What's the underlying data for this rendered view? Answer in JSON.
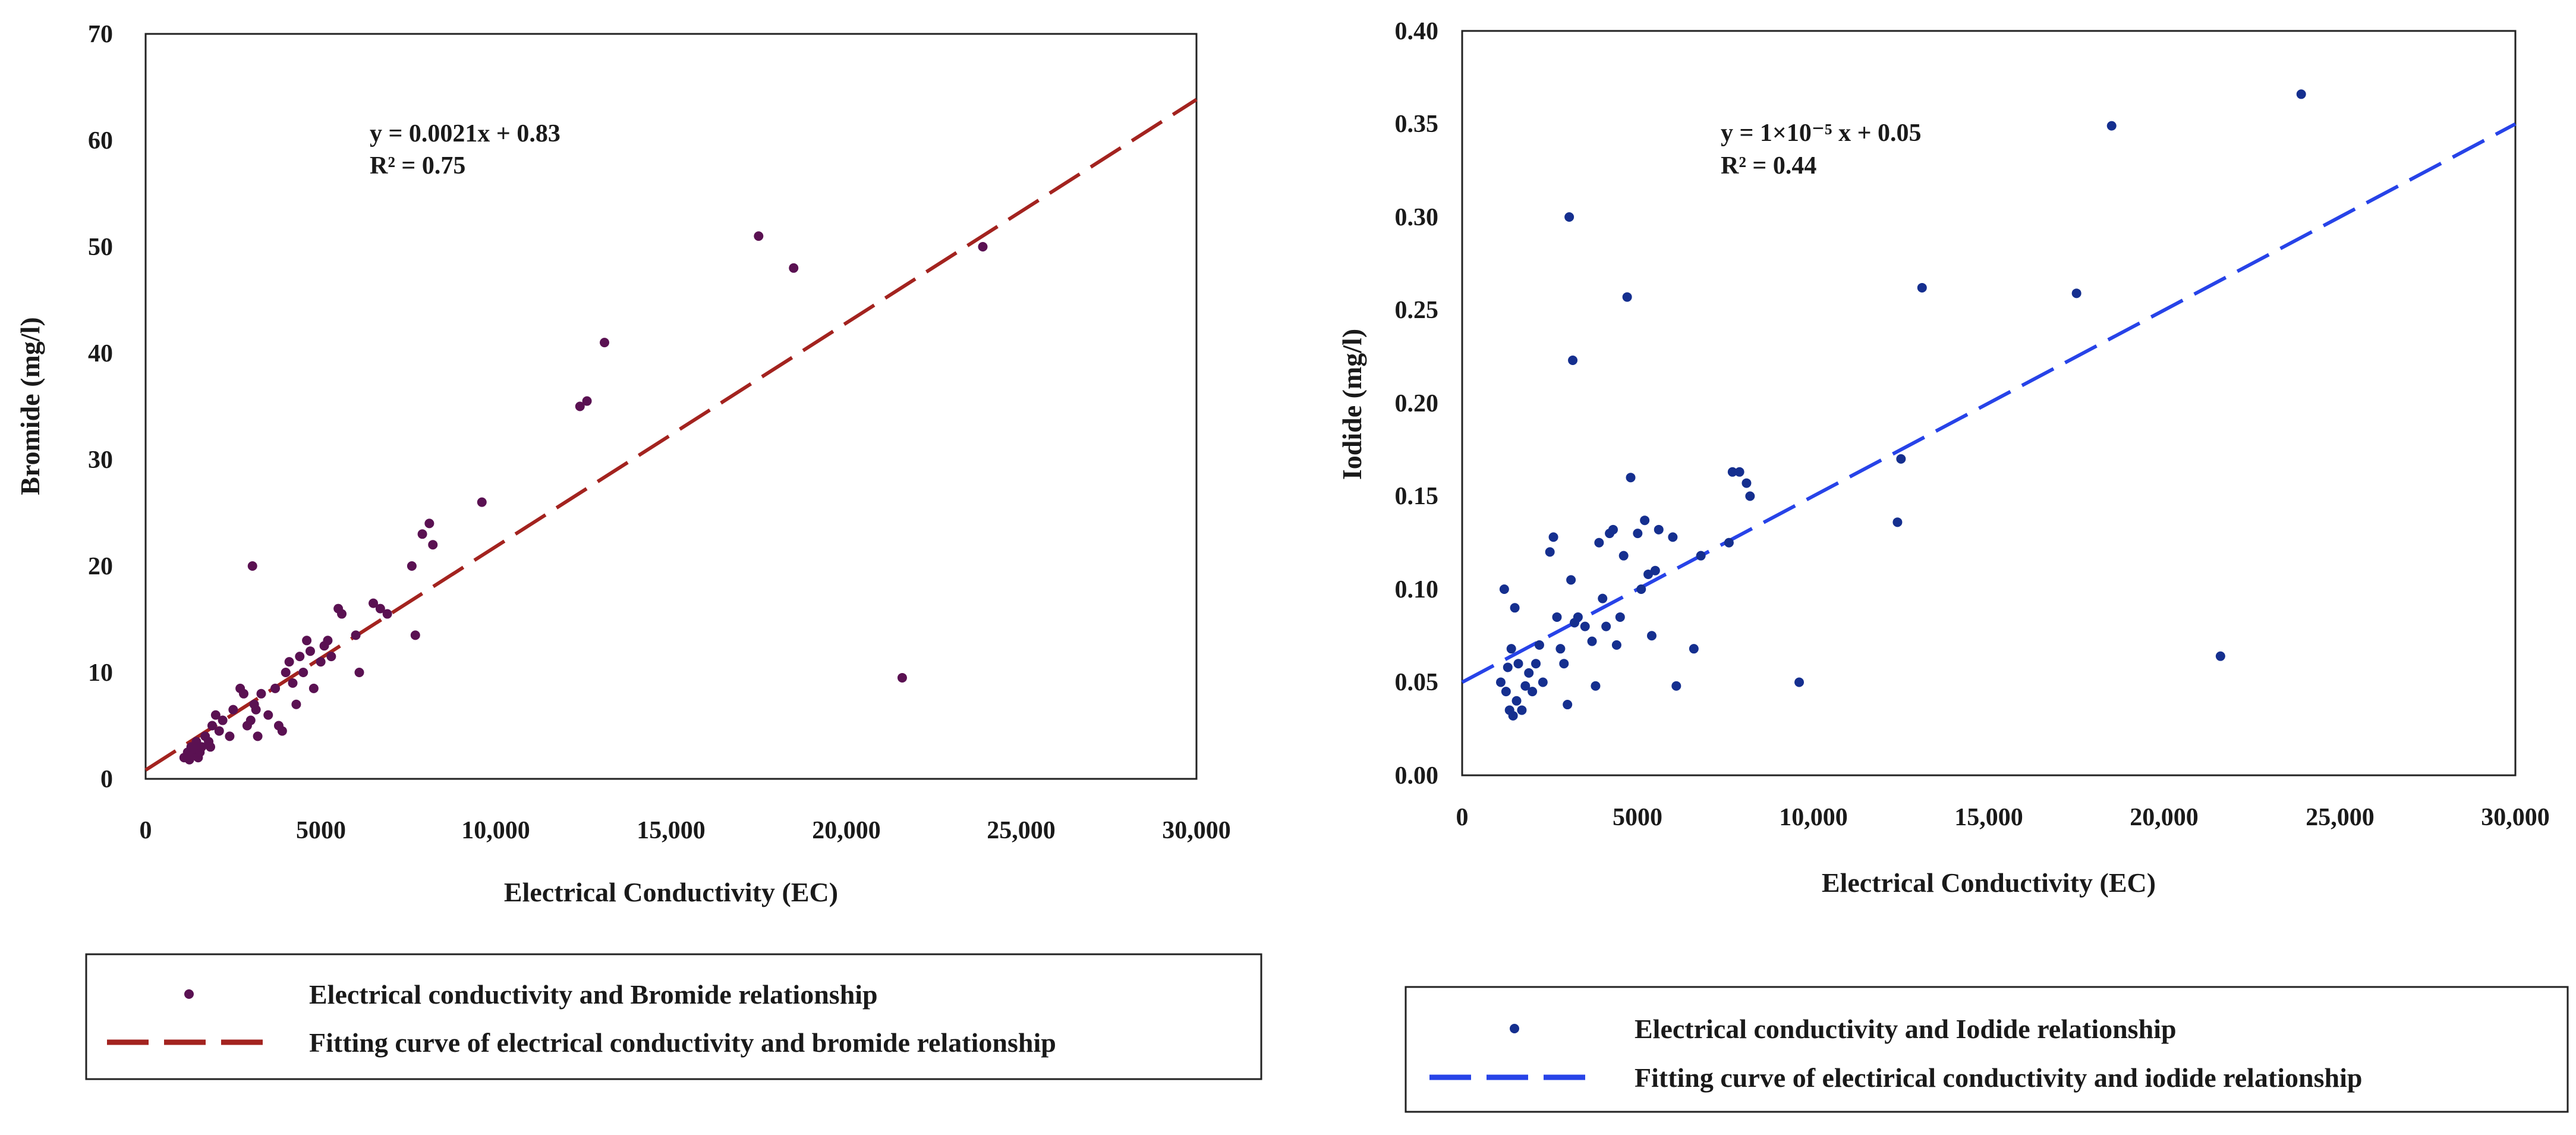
{
  "chart_data": [
    {
      "type": "scatter",
      "title": "",
      "xlabel": "Electrical Conductivity (EC)",
      "ylabel": "Bromide (mg/l)",
      "xlim": [
        0,
        30000
      ],
      "ylim": [
        0,
        70
      ],
      "xticks": [
        0,
        5000,
        10000,
        15000,
        20000,
        25000,
        30000
      ],
      "xtick_labels": [
        "0",
        "5000",
        "10,000",
        "15,000",
        "20,000",
        "25,000",
        "30,000"
      ],
      "yticks": [
        0,
        10,
        20,
        30,
        40,
        50,
        60,
        70
      ],
      "ytick_labels": [
        "0",
        "10",
        "20",
        "30",
        "40",
        "50",
        "60",
        "70"
      ],
      "equation": "y = 0.0021x + 0.83",
      "r2": "R² = 0.75",
      "fit": {
        "slope": 0.0021,
        "intercept": 0.83
      },
      "point_color": "#5a1152",
      "line_color": "#a3231f",
      "legend": {
        "points": "Electrical conductivity and Bromide relationship",
        "line": "Fitting curve of electrical conductivity and bromide relationship"
      },
      "x": [
        1100,
        1200,
        1250,
        1300,
        1350,
        1400,
        1450,
        1500,
        1550,
        1600,
        1700,
        1800,
        1850,
        1900,
        2000,
        2100,
        2200,
        2400,
        2500,
        2700,
        2800,
        2900,
        3000,
        3050,
        3100,
        3150,
        3200,
        3300,
        3500,
        3700,
        3800,
        3900,
        4000,
        4100,
        4200,
        4300,
        4400,
        4500,
        4600,
        4700,
        4800,
        5000,
        5100,
        5200,
        5300,
        5500,
        5600,
        6000,
        6100,
        6500,
        6700,
        6900,
        7600,
        7700,
        7900,
        8100,
        8200,
        9600,
        12400,
        12600,
        13100,
        17500,
        18500,
        21600,
        23900
      ],
      "y": [
        2.0,
        2.5,
        1.8,
        3.0,
        2.2,
        2.8,
        3.5,
        2.0,
        2.5,
        3.0,
        4.0,
        3.5,
        3.0,
        5.0,
        6.0,
        4.5,
        5.5,
        4.0,
        6.5,
        8.5,
        8.0,
        5.0,
        5.5,
        20.0,
        7.0,
        6.5,
        4.0,
        8.0,
        6.0,
        8.5,
        5.0,
        4.5,
        10.0,
        11.0,
        9.0,
        7.0,
        11.5,
        10.0,
        13.0,
        12.0,
        8.5,
        11.0,
        12.5,
        13.0,
        11.5,
        16.0,
        15.5,
        13.5,
        10.0,
        16.5,
        16.0,
        15.5,
        20.0,
        13.5,
        23.0,
        24.0,
        22.0,
        26.0,
        35.0,
        35.5,
        41.0,
        51.0,
        48.0,
        9.5,
        50.0
      ]
    },
    {
      "type": "scatter",
      "title": "",
      "xlabel": "Electrical Conductivity (EC)",
      "ylabel": "Iodide (mg/l)",
      "xlim": [
        0,
        30000
      ],
      "ylim": [
        0,
        0.4
      ],
      "xticks": [
        0,
        5000,
        10000,
        15000,
        20000,
        25000,
        30000
      ],
      "xtick_labels": [
        "0",
        "5000",
        "10,000",
        "15,000",
        "20,000",
        "25,000",
        "30,000"
      ],
      "yticks": [
        0,
        0.05,
        0.1,
        0.15,
        0.2,
        0.25,
        0.3,
        0.35,
        0.4
      ],
      "ytick_labels": [
        "0.00",
        "0.05",
        "0.10",
        "0.15",
        "0.20",
        "0.25",
        "0.30",
        "0.35",
        "0.40"
      ],
      "equation": "y = 1×10⁻⁵ x + 0.05",
      "r2": "R² = 0.44",
      "fit": {
        "slope": 1e-05,
        "intercept": 0.05
      },
      "point_color": "#152f8f",
      "line_color": "#2743e8",
      "legend": {
        "points": "Electrical conductivity and Iodide relationship",
        "line": "Fitting curve of electirical conductivity and iodide relationship"
      },
      "x": [
        1100,
        1200,
        1250,
        1300,
        1350,
        1400,
        1450,
        1500,
        1550,
        1600,
        1700,
        1800,
        1900,
        2000,
        2100,
        2200,
        2300,
        2500,
        2600,
        2700,
        2800,
        2900,
        3000,
        3050,
        3100,
        3150,
        3200,
        3300,
        3500,
        3700,
        3800,
        3900,
        4000,
        4100,
        4200,
        4300,
        4400,
        4500,
        4600,
        4700,
        4800,
        5000,
        5100,
        5200,
        5300,
        5400,
        5500,
        5600,
        6000,
        6100,
        6600,
        6800,
        7600,
        7700,
        7900,
        8100,
        8200,
        9600,
        12400,
        12500,
        13100,
        17500,
        18500,
        21600,
        23900
      ],
      "y": [
        0.05,
        0.1,
        0.045,
        0.058,
        0.035,
        0.068,
        0.032,
        0.09,
        0.04,
        0.06,
        0.035,
        0.048,
        0.055,
        0.045,
        0.06,
        0.07,
        0.05,
        0.12,
        0.128,
        0.085,
        0.068,
        0.06,
        0.038,
        0.3,
        0.105,
        0.223,
        0.082,
        0.085,
        0.08,
        0.072,
        0.048,
        0.125,
        0.095,
        0.08,
        0.13,
        0.132,
        0.07,
        0.085,
        0.118,
        0.257,
        0.16,
        0.13,
        0.1,
        0.137,
        0.108,
        0.075,
        0.11,
        0.132,
        0.128,
        0.048,
        0.068,
        0.118,
        0.125,
        0.163,
        0.163,
        0.157,
        0.15,
        0.05,
        0.136,
        0.17,
        0.262,
        0.259,
        0.349,
        0.064,
        0.366
      ]
    }
  ]
}
